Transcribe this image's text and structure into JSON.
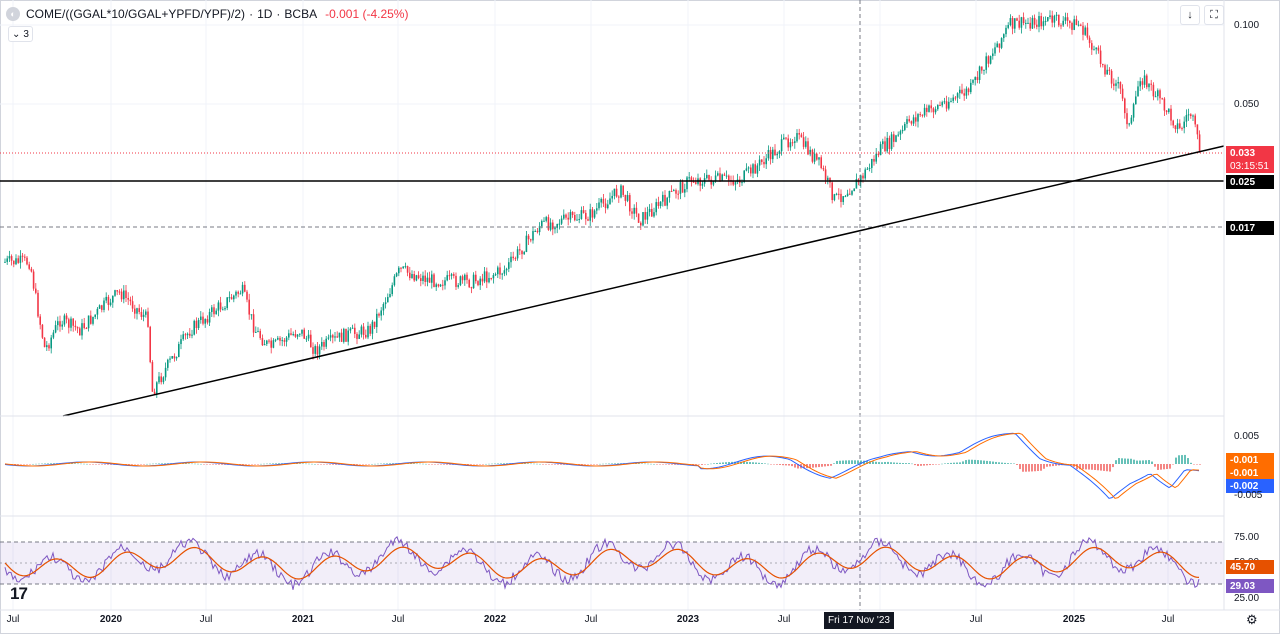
{
  "header": {
    "symbol": "COME/((GGAL*10/GGAL+YPFD/YPF)/2)",
    "interval": "1D",
    "exchange": "BCBA",
    "change": "-0.001 (-4.25%)",
    "indicators_count": "3"
  },
  "price_axis": {
    "labels": [
      "0.100",
      "0.050"
    ],
    "last_price": "0.033",
    "countdown": "03:15:51",
    "level_1": "0.025",
    "level_2": "0.017"
  },
  "macd_axis": {
    "top_label": "0.005",
    "badge_1": "-0.001",
    "badge_2": "-0.001",
    "badge_3": "-0.002",
    "bottom_label": "-0.005"
  },
  "rsi_axis": {
    "top_label": "75.00",
    "mid_label": "50.00",
    "badge_1": "45.70",
    "badge_2": "29.03",
    "bottom_label": "25.00"
  },
  "time_axis": {
    "labels": [
      "Jul",
      "2020",
      "Jul",
      "2021",
      "Jul",
      "2022",
      "Jul",
      "2023",
      "Jul",
      "Jul",
      "2025",
      "Jul"
    ],
    "crosshair_date": "Fri 17 Nov '23"
  },
  "logo_text": "17",
  "colors": {
    "up": "#089981",
    "down": "#f23645",
    "macd": "#2962ff",
    "signal": "#ff6d00",
    "rsi": "#7e57c2",
    "rsi_ma": "#e65100",
    "last_price_badge": "#f23645"
  }
}
